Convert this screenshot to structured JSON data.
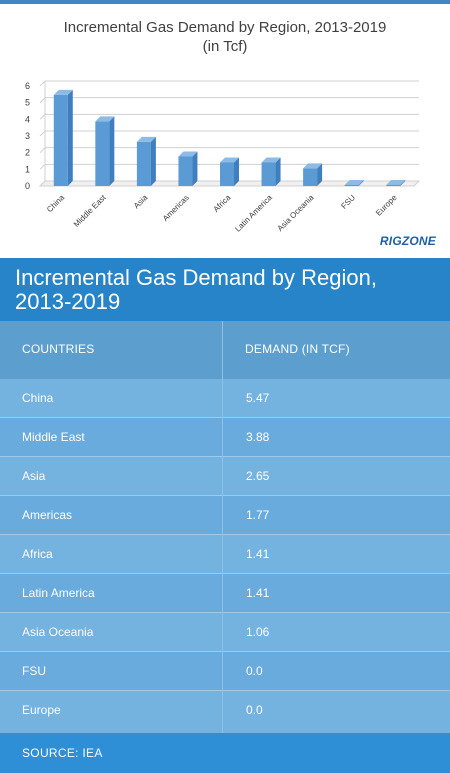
{
  "chart_data": {
    "type": "bar",
    "title": "Incremental Gas Demand by Region, 2013-2019",
    "subtitle": "(in Tcf)",
    "categories": [
      "China",
      "Middle East",
      "Asia",
      "Americas",
      "Africa",
      "Latin America",
      "Asia Oceania",
      "FSU",
      "Europe"
    ],
    "values": [
      5.47,
      3.88,
      2.65,
      1.77,
      1.41,
      1.41,
      1.06,
      0.0,
      0.0
    ],
    "ylim": [
      0,
      6
    ],
    "yticks": [
      0,
      1,
      2,
      3,
      4,
      5,
      6
    ],
    "grid": true,
    "xlabel": "",
    "ylabel": "",
    "bar_color": "#5a9bd5"
  },
  "brand": {
    "logo": "RIGZONE"
  },
  "table": {
    "title": "Incremental Gas Demand by Region, 2013-2019",
    "headers": [
      "COUNTRIES",
      "DEMAND (IN TCF)"
    ],
    "rows": [
      [
        "China",
        "5.47"
      ],
      [
        "Middle East",
        "3.88"
      ],
      [
        "Asia",
        "2.65"
      ],
      [
        "Americas",
        "1.77"
      ],
      [
        "Africa",
        "1.41"
      ],
      [
        "Latin America",
        "1.41"
      ],
      [
        "Asia Oceania",
        "1.06"
      ],
      [
        "FSU",
        "0.0"
      ],
      [
        "Europe",
        "0.0"
      ]
    ],
    "source": "SOURCE: IEA"
  },
  "colors": {
    "header_blue": "#2784c8",
    "row_blue": "#74b2e0",
    "source_blue": "#2e8fd6"
  }
}
